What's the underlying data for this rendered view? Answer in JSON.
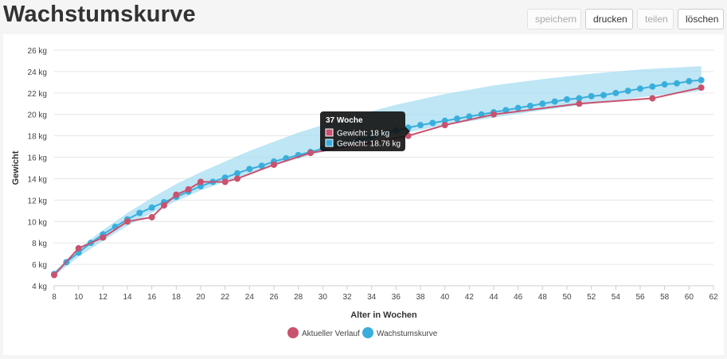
{
  "page": {
    "title": "Wachstumskurve"
  },
  "toolbar": {
    "speichern": "speichern",
    "drucken": "drucken",
    "teilen": "teilen",
    "loeschen": "löschen"
  },
  "chart_data": {
    "type": "line",
    "title": "",
    "xlabel": "Alter in Wochen",
    "ylabel": "Gewicht",
    "xlim": [
      8,
      62
    ],
    "ylim": [
      4,
      26
    ],
    "x_ticks": [
      8,
      10,
      12,
      14,
      16,
      18,
      20,
      22,
      24,
      26,
      28,
      30,
      32,
      34,
      36,
      38,
      40,
      42,
      44,
      46,
      48,
      50,
      52,
      54,
      56,
      58,
      60,
      62
    ],
    "y_ticks": [
      4,
      6,
      8,
      10,
      12,
      14,
      16,
      18,
      20,
      22,
      24,
      26
    ],
    "y_unit": "kg",
    "grid": true,
    "legend_position": "bottom",
    "band": {
      "x": [
        8,
        10,
        12,
        14,
        16,
        18,
        20,
        24,
        28,
        32,
        36,
        40,
        44,
        48,
        52,
        56,
        61
      ],
      "lower": [
        4.9,
        6.7,
        8.2,
        9.6,
        10.8,
        11.9,
        12.9,
        14.5,
        15.9,
        17.1,
        18.1,
        19.0,
        19.7,
        20.4,
        21.0,
        21.6,
        22.2
      ],
      "upper": [
        5.3,
        7.5,
        9.2,
        10.8,
        12.2,
        13.5,
        14.6,
        16.6,
        18.3,
        19.7,
        20.9,
        21.9,
        22.7,
        23.3,
        23.8,
        24.2,
        24.5
      ]
    },
    "series": [
      {
        "name": "Aktueller Verlauf",
        "color": "#c9526f",
        "x": [
          8,
          10,
          12,
          14,
          16,
          17,
          18,
          19,
          20,
          22,
          23,
          26,
          29,
          37,
          40,
          44,
          51,
          57,
          61
        ],
        "y": [
          5.0,
          7.5,
          8.5,
          10.0,
          10.4,
          11.5,
          12.5,
          13.0,
          13.7,
          13.7,
          14.0,
          15.3,
          16.4,
          18.0,
          19.0,
          20.0,
          21.0,
          21.5,
          22.5
        ]
      },
      {
        "name": "Wachstumskurve",
        "color": "#3aaedb",
        "x": [
          8,
          9,
          10,
          11,
          12,
          13,
          14,
          15,
          16,
          17,
          18,
          19,
          20,
          21,
          22,
          23,
          24,
          25,
          26,
          27,
          28,
          29,
          30,
          31,
          32,
          33,
          34,
          35,
          36,
          37,
          38,
          39,
          40,
          41,
          42,
          43,
          44,
          45,
          46,
          47,
          48,
          49,
          50,
          51,
          52,
          53,
          54,
          55,
          56,
          57,
          58,
          59,
          60,
          61
        ],
        "y": [
          5.1,
          6.2,
          7.1,
          8.0,
          8.8,
          9.5,
          10.2,
          10.8,
          11.3,
          11.8,
          12.3,
          12.8,
          13.3,
          13.7,
          14.1,
          14.5,
          14.9,
          15.2,
          15.6,
          15.9,
          16.2,
          16.5,
          16.8,
          17.1,
          17.3,
          17.6,
          17.9,
          18.2,
          18.5,
          18.76,
          19.0,
          19.2,
          19.4,
          19.6,
          19.8,
          20.0,
          20.2,
          20.4,
          20.6,
          20.8,
          21.0,
          21.2,
          21.4,
          21.5,
          21.7,
          21.8,
          22.0,
          22.2,
          22.4,
          22.6,
          22.8,
          22.9,
          23.1,
          23.2
        ]
      }
    ],
    "tooltip": {
      "title": "37 Woche",
      "rows": [
        {
          "label": "Gewicht: 18 kg",
          "color": "#c9526f"
        },
        {
          "label": "Gewicht: 18.76 kg",
          "color": "#3aaedb"
        }
      ]
    }
  }
}
